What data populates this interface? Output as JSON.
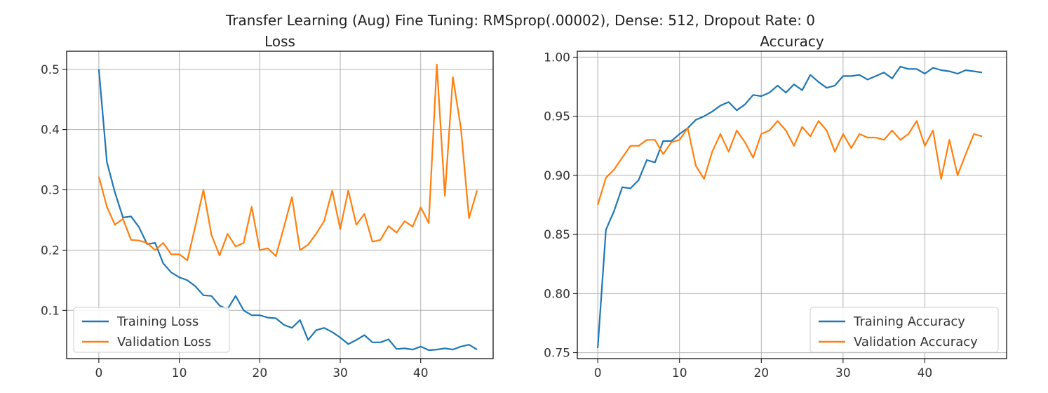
{
  "figure": {
    "suptitle": "Transfer Learning (Aug) Fine Tuning: RMSprop(.00002), Dense: 512, Dropout Rate: 0"
  },
  "chart_data": [
    {
      "type": "line",
      "title": "Loss",
      "xlabel": "",
      "ylabel": "",
      "xlim": [
        -4,
        49
      ],
      "ylim": [
        0.02,
        0.53
      ],
      "xticks": [
        0,
        10,
        20,
        30,
        40
      ],
      "yticks": [
        0.1,
        0.2,
        0.3,
        0.4,
        0.5
      ],
      "grid": true,
      "legend": "lower-left",
      "x": [
        0,
        1,
        2,
        3,
        4,
        5,
        6,
        7,
        8,
        9,
        10,
        11,
        12,
        13,
        14,
        15,
        16,
        17,
        18,
        19,
        20,
        21,
        22,
        23,
        24,
        25,
        26,
        27,
        28,
        29,
        30,
        31,
        32,
        33,
        34,
        35,
        36,
        37,
        38,
        39,
        40,
        41,
        42,
        43,
        44,
        45,
        46,
        47
      ],
      "series": [
        {
          "name": "Training Loss",
          "color": "#1f77b4",
          "values": [
            0.5,
            0.346,
            0.296,
            0.254,
            0.256,
            0.238,
            0.21,
            0.212,
            0.178,
            0.163,
            0.155,
            0.15,
            0.14,
            0.125,
            0.124,
            0.108,
            0.102,
            0.124,
            0.1,
            0.092,
            0.092,
            0.088,
            0.087,
            0.076,
            0.071,
            0.084,
            0.051,
            0.067,
            0.071,
            0.064,
            0.055,
            0.044,
            0.051,
            0.059,
            0.047,
            0.047,
            0.052,
            0.036,
            0.037,
            0.035,
            0.04,
            0.034,
            0.035,
            0.037,
            0.035,
            0.04,
            0.043,
            0.035
          ]
        },
        {
          "name": "Validation Loss",
          "color": "#ff7f0e",
          "values": [
            0.322,
            0.272,
            0.242,
            0.252,
            0.217,
            0.216,
            0.212,
            0.2,
            0.212,
            0.193,
            0.193,
            0.183,
            0.24,
            0.3,
            0.225,
            0.191,
            0.227,
            0.206,
            0.212,
            0.272,
            0.2,
            0.203,
            0.19,
            0.238,
            0.288,
            0.2,
            0.209,
            0.227,
            0.248,
            0.299,
            0.235,
            0.299,
            0.242,
            0.26,
            0.214,
            0.217,
            0.24,
            0.229,
            0.248,
            0.239,
            0.271,
            0.245,
            0.508,
            0.29,
            0.487,
            0.402,
            0.253,
            0.299
          ]
        }
      ]
    },
    {
      "type": "line",
      "title": "Accuracy",
      "xlabel": "",
      "ylabel": "",
      "xlim": [
        -2.5,
        50
      ],
      "ylim": [
        0.745,
        1.005
      ],
      "xticks": [
        0,
        10,
        20,
        30,
        40
      ],
      "yticks": [
        0.75,
        0.8,
        0.85,
        0.9,
        0.95,
        1.0
      ],
      "grid": true,
      "legend": "lower-right",
      "x": [
        0,
        1,
        2,
        3,
        4,
        5,
        6,
        7,
        8,
        9,
        10,
        11,
        12,
        13,
        14,
        15,
        16,
        17,
        18,
        19,
        20,
        21,
        22,
        23,
        24,
        25,
        26,
        27,
        28,
        29,
        30,
        31,
        32,
        33,
        34,
        35,
        36,
        37,
        38,
        39,
        40,
        41,
        42,
        43,
        44,
        45,
        46,
        47
      ],
      "series": [
        {
          "name": "Training Accuracy",
          "color": "#1f77b4",
          "values": [
            0.754,
            0.854,
            0.87,
            0.89,
            0.889,
            0.896,
            0.913,
            0.911,
            0.929,
            0.929,
            0.935,
            0.94,
            0.947,
            0.95,
            0.954,
            0.959,
            0.962,
            0.955,
            0.96,
            0.968,
            0.967,
            0.97,
            0.976,
            0.97,
            0.977,
            0.972,
            0.985,
            0.979,
            0.974,
            0.976,
            0.984,
            0.984,
            0.985,
            0.981,
            0.984,
            0.987,
            0.982,
            0.992,
            0.99,
            0.99,
            0.986,
            0.991,
            0.989,
            0.988,
            0.986,
            0.989,
            0.988,
            0.987
          ]
        },
        {
          "name": "Validation Accuracy",
          "color": "#ff7f0e",
          "values": [
            0.875,
            0.898,
            0.905,
            0.915,
            0.925,
            0.925,
            0.93,
            0.93,
            0.918,
            0.928,
            0.93,
            0.94,
            0.908,
            0.897,
            0.92,
            0.935,
            0.92,
            0.938,
            0.928,
            0.915,
            0.935,
            0.938,
            0.946,
            0.938,
            0.925,
            0.941,
            0.933,
            0.946,
            0.938,
            0.92,
            0.935,
            0.923,
            0.935,
            0.932,
            0.932,
            0.93,
            0.938,
            0.93,
            0.935,
            0.946,
            0.925,
            0.938,
            0.897,
            0.93,
            0.9,
            0.918,
            0.935,
            0.933
          ]
        }
      ]
    }
  ]
}
